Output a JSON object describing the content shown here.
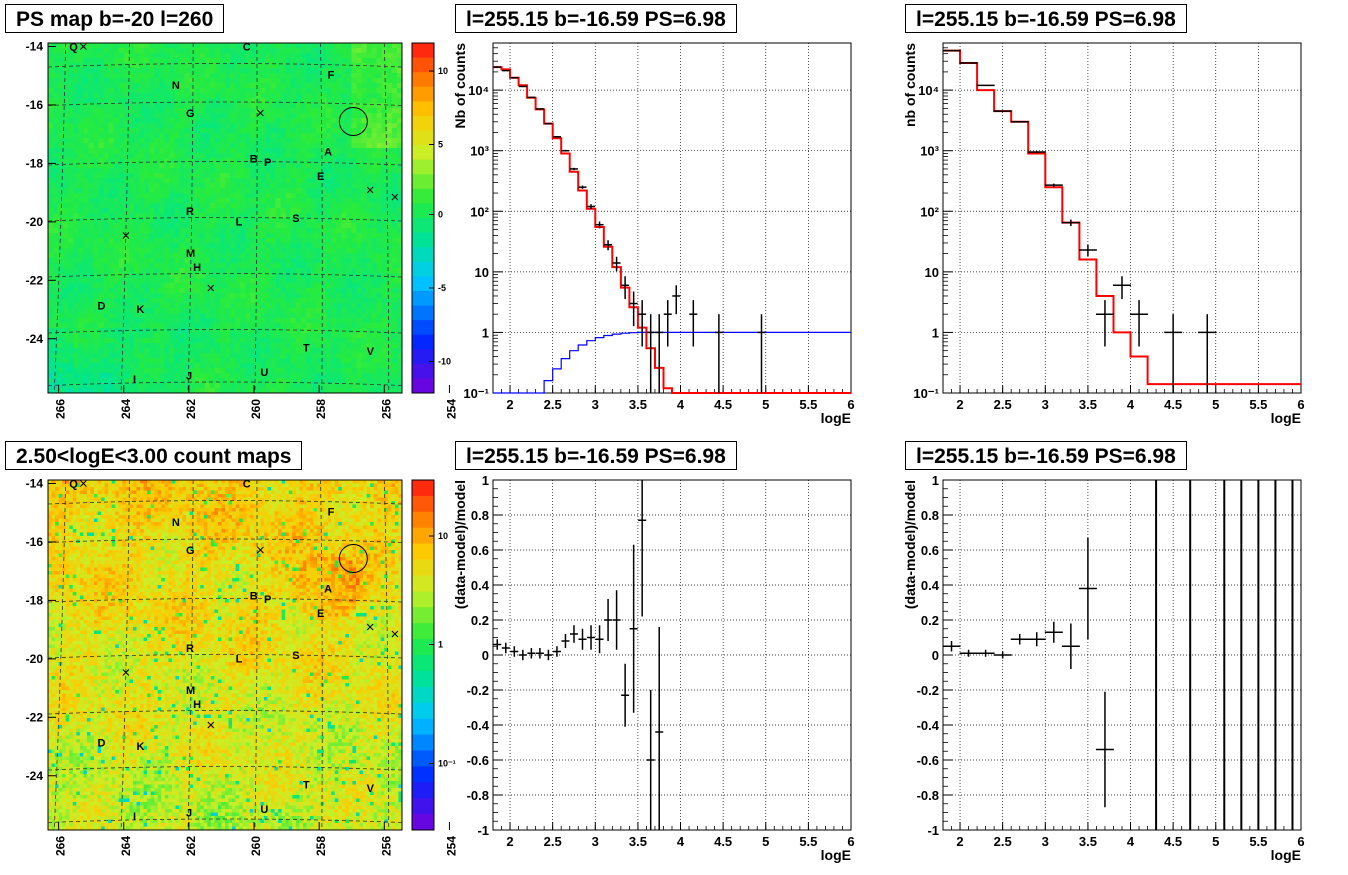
{
  "titles": {
    "map_top": "PS map b=-20 l=260",
    "map_bottom": "2.50<logE<3.00 count maps",
    "p1": "l=255.15 b=-16.59 PS=6.98",
    "p2": "l=255.15 b=-16.59 PS=6.98",
    "p3": "l=255.15 b=-16.59 PS=6.98",
    "p4": "l=255.15 b=-16.59 PS=6.98"
  },
  "chart_data": [
    {
      "id": "ps_map",
      "type": "heatmap",
      "title": "PS map b=-20 l=260",
      "xlim": [
        265.5,
        253.5
      ],
      "ylim": [
        -25.9,
        -13.9
      ],
      "x_ticks": [
        "266",
        "264",
        "262",
        "260",
        "258",
        "256",
        "254"
      ],
      "y_ticks": [
        "-14",
        "-16",
        "-18",
        "-20",
        "-22",
        "-24"
      ],
      "colorbar_ticks": [
        "10",
        "5",
        "0",
        "-5",
        "-10"
      ],
      "colorbar_range": [
        -12,
        12
      ],
      "labels": [
        "Q",
        "C",
        "N",
        "F",
        "G",
        "B",
        "P",
        "A",
        "E",
        "R",
        "L",
        "S",
        "M",
        "H",
        "D",
        "K",
        "T",
        "V",
        "I",
        "J",
        "U"
      ],
      "circle": {
        "l": 255.15,
        "b": -16.59
      }
    },
    {
      "id": "count_map",
      "type": "heatmap",
      "title": "2.50<logE<3.00 count maps",
      "xlim": [
        265.5,
        253.5
      ],
      "ylim": [
        -25.9,
        -13.9
      ],
      "x_ticks": [
        "266",
        "264",
        "262",
        "260",
        "258",
        "256",
        "254"
      ],
      "y_ticks": [
        "-14",
        "-16",
        "-18",
        "-20",
        "-22",
        "-24"
      ],
      "colorbar_ticks": [
        "10",
        "1",
        "10⁻¹"
      ],
      "colorbar_scale": "log",
      "labels": [
        "Q",
        "C",
        "N",
        "F",
        "G",
        "B",
        "P",
        "A",
        "E",
        "R",
        "L",
        "S",
        "M",
        "H",
        "D",
        "K",
        "T",
        "V",
        "I",
        "J",
        "U"
      ],
      "circle": {
        "l": 255.15,
        "b": -16.59
      }
    },
    {
      "id": "spec_nb",
      "type": "line",
      "title": "l=255.15 b=-16.59 PS=6.98",
      "xlabel": "logE",
      "ylabel": "Nb of counts",
      "xlim": [
        1.8,
        6
      ],
      "ylim": [
        0.1,
        60000
      ],
      "yscale": "log",
      "x_ticks": [
        "2",
        "2.5",
        "3",
        "3.5",
        "4",
        "4.5",
        "5",
        "5.5",
        "6"
      ],
      "y_ticks": [
        "10⁻¹",
        "1",
        "10",
        "10²",
        "10³",
        "10⁴"
      ],
      "grid": true,
      "series": [
        {
          "color": "#ff0000",
          "x": [
            1.8,
            1.9,
            2.0,
            2.1,
            2.2,
            2.3,
            2.4,
            2.5,
            2.6,
            2.7,
            2.8,
            2.9,
            3.0,
            3.1,
            3.2,
            3.3,
            3.4,
            3.5,
            3.6,
            3.7,
            3.8,
            3.9,
            4.0,
            4.1,
            6.0
          ],
          "values": [
            24000,
            22000,
            16000,
            12000,
            7500,
            4800,
            2800,
            1600,
            900,
            450,
            220,
            110,
            55,
            26,
            12,
            5.5,
            2.6,
            1.2,
            0.55,
            0.26,
            0.12,
            0.1,
            0.1,
            0.1,
            0.1
          ]
        },
        {
          "color": "#0000ff",
          "x": [
            1.8,
            2.3,
            2.4,
            2.5,
            2.6,
            2.7,
            2.8,
            2.9,
            3.0,
            3.1,
            3.2,
            3.3,
            3.4,
            3.5,
            3.6,
            6.0
          ],
          "values": [
            0.1,
            0.1,
            0.16,
            0.25,
            0.37,
            0.5,
            0.62,
            0.73,
            0.82,
            0.89,
            0.94,
            0.97,
            0.99,
            1.0,
            1.0,
            1.0
          ]
        },
        {
          "color": "#000000",
          "x": [
            1.85,
            1.95,
            2.05,
            2.15,
            2.25,
            2.35,
            2.45,
            2.55,
            2.65,
            2.75,
            2.85,
            2.95,
            3.05,
            3.15,
            3.25,
            3.35,
            3.45,
            3.55,
            3.65,
            3.75,
            3.85,
            3.95,
            4.15,
            4.45,
            4.95
          ],
          "values": [
            24000,
            21000,
            16000,
            11500,
            7600,
            4900,
            2800,
            1700,
            1000,
            500,
            250,
            120,
            60,
            28,
            14,
            6,
            3,
            2,
            1,
            1,
            2,
            4,
            2,
            1,
            1
          ]
        }
      ]
    },
    {
      "id": "spec_nb2",
      "type": "line",
      "title": "l=255.15 b=-16.59 PS=6.98",
      "xlabel": "logE",
      "ylabel": "nb of counts",
      "xlim": [
        1.8,
        6
      ],
      "ylim": [
        0.1,
        60000
      ],
      "yscale": "log",
      "x_ticks": [
        "2",
        "2.5",
        "3",
        "3.5",
        "4",
        "4.5",
        "5",
        "5.5",
        "6"
      ],
      "y_ticks": [
        "10⁻¹",
        "1",
        "10",
        "10²",
        "10³",
        "10⁴"
      ],
      "grid": true,
      "series": [
        {
          "color": "#ff0000",
          "x": [
            1.8,
            2.0,
            2.2,
            2.4,
            2.6,
            2.8,
            3.0,
            3.2,
            3.4,
            3.6,
            3.8,
            4.0,
            4.2,
            6.0
          ],
          "values": [
            45000,
            28000,
            10000,
            4500,
            3000,
            900,
            250,
            65,
            16,
            4,
            1,
            0.4,
            0.14,
            0.1
          ]
        },
        {
          "color": "#000000",
          "x": [
            1.9,
            2.1,
            2.3,
            2.5,
            2.7,
            2.9,
            3.1,
            3.3,
            3.5,
            3.7,
            3.9,
            4.1,
            4.5,
            4.9
          ],
          "values": [
            45000,
            28000,
            12000,
            4500,
            3000,
            950,
            270,
            65,
            23,
            2,
            6,
            2,
            1,
            1
          ]
        }
      ]
    },
    {
      "id": "resid_1",
      "type": "scatter",
      "title": "l=255.15 b=-16.59 PS=6.98",
      "xlabel": "logE",
      "ylabel": "(data-model)/model",
      "xlim": [
        1.8,
        6
      ],
      "ylim": [
        -1,
        1
      ],
      "x_ticks": [
        "2",
        "2.5",
        "3",
        "3.5",
        "4",
        "4.5",
        "5",
        "5.5",
        "6"
      ],
      "y_ticks": [
        "1",
        "0.8",
        "0.6",
        "0.4",
        "0.2",
        "0",
        "-0.2",
        "-0.4",
        "-0.6",
        "-0.8",
        "-1"
      ],
      "grid": true,
      "x": [
        1.85,
        1.95,
        2.05,
        2.15,
        2.25,
        2.35,
        2.45,
        2.55,
        2.65,
        2.75,
        2.85,
        2.95,
        3.05,
        3.15,
        3.25,
        3.35,
        3.45,
        3.55,
        3.65,
        3.75
      ],
      "values": [
        0.06,
        0.04,
        0.02,
        0.0,
        0.01,
        0.01,
        0.0,
        0.02,
        0.08,
        0.12,
        0.09,
        0.1,
        0.09,
        0.2,
        0.2,
        -0.23,
        0.15,
        0.77,
        -0.6,
        -0.44
      ]
    },
    {
      "id": "resid_2",
      "type": "scatter",
      "title": "l=255.15 b=-16.59 PS=6.98",
      "xlabel": "logE",
      "ylabel": "(data-model)/model",
      "xlim": [
        1.8,
        6
      ],
      "ylim": [
        -1,
        1
      ],
      "x_ticks": [
        "2",
        "2.5",
        "3",
        "3.5",
        "4",
        "4.5",
        "5",
        "5.5",
        "6"
      ],
      "y_ticks": [
        "1",
        "0.8",
        "0.6",
        "0.4",
        "0.2",
        "0",
        "-0.2",
        "-0.4",
        "-0.6",
        "-0.8",
        "-1"
      ],
      "grid": true,
      "x": [
        1.9,
        2.1,
        2.3,
        2.5,
        2.7,
        2.9,
        3.1,
        3.3,
        3.5,
        3.7
      ],
      "values": [
        0.05,
        0.01,
        0.01,
        0.0,
        0.09,
        0.09,
        0.13,
        0.05,
        0.38,
        -0.54
      ]
    }
  ]
}
